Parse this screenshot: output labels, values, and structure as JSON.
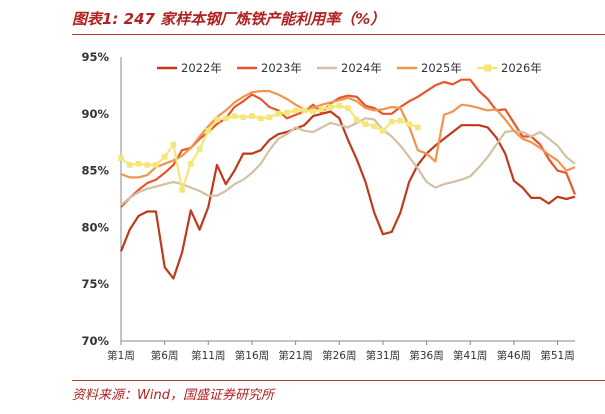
{
  "title": "图表1:  247 家样本钢厂炼铁产能利用率（%）",
  "source": "资料来源：Wind，国盛证券研究所",
  "chart_data": {
    "type": "line",
    "ylim": [
      70,
      95
    ],
    "yticks": [
      "70%",
      "75%",
      "80%",
      "85%",
      "90%",
      "95%"
    ],
    "ytick_values": [
      70,
      75,
      80,
      85,
      90,
      95
    ],
    "xlim": [
      1,
      53
    ],
    "xticks": [
      "第1周",
      "第6周",
      "第11周",
      "第16周",
      "第21周",
      "第26周",
      "第31周",
      "第36周",
      "第41周",
      "第46周",
      "第51周"
    ],
    "xtick_values": [
      1,
      6,
      11,
      16,
      21,
      26,
      31,
      36,
      41,
      46,
      51
    ],
    "grid": false,
    "legend_position": "top",
    "series": [
      {
        "name": "2022年",
        "color": "#c0391b",
        "values": [
          77.9,
          79.8,
          81.0,
          81.4,
          81.4,
          76.5,
          75.5,
          77.8,
          81.5,
          79.8,
          81.8,
          85.5,
          83.8,
          85.0,
          86.5,
          86.5,
          86.8,
          87.7,
          88.2,
          88.4,
          88.7,
          89.0,
          89.8,
          90.0,
          90.2,
          89.6,
          87.7,
          86.0,
          84.0,
          81.3,
          79.4,
          79.6,
          81.3,
          84.0,
          85.5,
          86.5,
          87.2,
          87.8,
          88.4,
          89.0,
          89.0,
          89.0,
          88.8,
          87.9,
          86.5,
          84.1,
          83.5,
          82.6,
          82.6,
          82.1,
          82.7,
          82.5,
          82.7
        ]
      },
      {
        "name": "2023年",
        "color": "#e8552a",
        "values": [
          81.8,
          82.6,
          83.3,
          83.9,
          84.2,
          84.8,
          85.5,
          86.8,
          87.0,
          87.8,
          88.4,
          89.1,
          89.6,
          90.6,
          91.1,
          91.7,
          91.3,
          90.6,
          90.3,
          89.6,
          89.9,
          90.2,
          90.8,
          90.1,
          90.9,
          91.4,
          91.6,
          91.5,
          90.7,
          90.5,
          90.0,
          90.0,
          90.6,
          91.1,
          91.5,
          92.0,
          92.5,
          92.8,
          92.6,
          93.0,
          93.0,
          92.0,
          91.3,
          90.3,
          90.4,
          89.2,
          88.0,
          88.0,
          87.3,
          86.0,
          85.0,
          84.8,
          82.9
        ]
      },
      {
        "name": "2024年",
        "color": "#d4c1a3",
        "values": [
          82.0,
          82.6,
          83.1,
          83.4,
          83.6,
          83.8,
          84.0,
          83.8,
          83.5,
          83.2,
          82.8,
          82.8,
          83.2,
          83.8,
          84.2,
          84.8,
          85.6,
          86.8,
          87.8,
          88.2,
          88.8,
          88.5,
          88.4,
          88.8,
          89.2,
          89.0,
          88.8,
          89.2,
          89.6,
          89.5,
          88.6,
          88.0,
          87.2,
          86.2,
          85.2,
          84.0,
          83.5,
          83.8,
          84.0,
          84.2,
          84.5,
          85.3,
          86.2,
          87.3,
          88.4,
          88.5,
          88.4,
          88.0,
          88.4,
          87.8,
          87.2,
          86.2,
          85.6
        ]
      },
      {
        "name": "2025年",
        "color": "#f0954e",
        "values": [
          84.7,
          84.4,
          84.4,
          84.6,
          85.3,
          85.6,
          85.9,
          86.3,
          87.0,
          88.0,
          88.9,
          89.7,
          90.3,
          91.0,
          91.5,
          91.9,
          92.0,
          92.0,
          91.7,
          91.3,
          90.8,
          90.4,
          90.5,
          90.8,
          91.0,
          91.2,
          91.4,
          91.1,
          90.5,
          90.3,
          90.4,
          90.6,
          90.5,
          88.9,
          86.8,
          86.5,
          85.8,
          89.9,
          90.2,
          90.8,
          90.7,
          90.5,
          90.3,
          90.4,
          89.5,
          88.5,
          87.8,
          87.5,
          87.0,
          86.4,
          85.9,
          85.0,
          85.3
        ]
      },
      {
        "name": "2026年",
        "color": "#f5e679",
        "marker": "square",
        "values": [
          86.1,
          85.5,
          85.6,
          85.5,
          85.5,
          86.2,
          87.3,
          83.3,
          85.6,
          86.9,
          88.5,
          89.5,
          89.6,
          89.8,
          89.7,
          89.8,
          89.6,
          89.7,
          90.0,
          90.1,
          90.3,
          90.3,
          90.2,
          90.4,
          90.6,
          90.7,
          90.5,
          89.5,
          89.1,
          88.9,
          88.5,
          89.3,
          89.4,
          89.1,
          88.8
        ]
      }
    ]
  }
}
